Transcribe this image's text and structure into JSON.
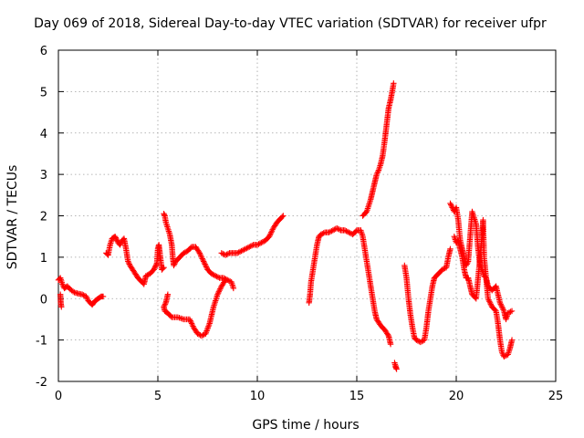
{
  "chart_data": {
    "type": "scatter",
    "title": "Day 069 of 2018, Sidereal Day-to-day VTEC variation (SDTVAR) for receiver ufpr",
    "xlabel": "GPS time / hours",
    "ylabel": "SDTVAR / TECUs",
    "xlim": [
      0,
      25
    ],
    "ylim": [
      -2,
      6
    ],
    "xticks": [
      0,
      5,
      10,
      15,
      20,
      25
    ],
    "yticks": [
      -2,
      -1,
      0,
      1,
      2,
      3,
      4,
      5,
      6
    ],
    "xtick_labels": [
      "0",
      "5",
      "10",
      "15",
      "20",
      "25"
    ],
    "ytick_labels": [
      "-2",
      "-1",
      "0",
      "1",
      "2",
      "3",
      "4",
      "5",
      "6"
    ],
    "grid": true,
    "marker": "plus",
    "series": [
      {
        "name": "SDTVAR",
        "color": "#ff0000",
        "segments": [
          [
            [
              0.0,
              0.45
            ],
            [
              0.1,
              0.5
            ],
            [
              0.2,
              0.35
            ],
            [
              0.3,
              0.25
            ],
            [
              0.45,
              0.3
            ],
            [
              0.6,
              0.22
            ],
            [
              0.8,
              0.15
            ],
            [
              1.0,
              0.12
            ],
            [
              1.2,
              0.1
            ],
            [
              1.4,
              0.05
            ],
            [
              1.5,
              -0.05
            ],
            [
              1.6,
              -0.1
            ],
            [
              1.7,
              -0.15
            ],
            [
              1.85,
              -0.05
            ],
            [
              2.0,
              0.0
            ],
            [
              2.15,
              0.05
            ],
            [
              2.25,
              0.05
            ]
          ],
          [
            [
              0.1,
              0.1
            ],
            [
              0.12,
              -0.1
            ],
            [
              0.15,
              -0.2
            ]
          ],
          [
            [
              2.4,
              1.1
            ],
            [
              2.5,
              1.05
            ],
            [
              2.6,
              1.3
            ],
            [
              2.7,
              1.45
            ],
            [
              2.85,
              1.5
            ],
            [
              3.0,
              1.35
            ],
            [
              3.1,
              1.3
            ],
            [
              3.2,
              1.4
            ],
            [
              3.3,
              1.45
            ],
            [
              3.4,
              1.2
            ],
            [
              3.5,
              0.9
            ],
            [
              3.6,
              0.8
            ],
            [
              3.8,
              0.65
            ],
            [
              4.0,
              0.5
            ],
            [
              4.2,
              0.4
            ],
            [
              4.3,
              0.35
            ],
            [
              4.4,
              0.55
            ],
            [
              4.6,
              0.6
            ],
            [
              4.8,
              0.7
            ],
            [
              4.95,
              0.85
            ],
            [
              5.0,
              1.2
            ],
            [
              5.05,
              1.3
            ],
            [
              5.1,
              1.1
            ],
            [
              5.2,
              0.7
            ],
            [
              5.3,
              0.75
            ]
          ],
          [
            [
              5.3,
              2.05
            ],
            [
              5.35,
              2.0
            ],
            [
              5.4,
              1.85
            ],
            [
              5.5,
              1.7
            ],
            [
              5.6,
              1.55
            ],
            [
              5.7,
              1.3
            ],
            [
              5.75,
              1.0
            ],
            [
              5.8,
              0.8
            ],
            [
              5.9,
              0.9
            ],
            [
              6.1,
              1.0
            ],
            [
              6.3,
              1.1
            ],
            [
              6.5,
              1.15
            ],
            [
              6.7,
              1.25
            ],
            [
              6.9,
              1.25
            ],
            [
              7.1,
              1.1
            ],
            [
              7.3,
              0.9
            ],
            [
              7.5,
              0.7
            ],
            [
              7.7,
              0.6
            ],
            [
              7.9,
              0.55
            ],
            [
              8.1,
              0.5
            ],
            [
              8.3,
              0.5
            ],
            [
              8.5,
              0.45
            ],
            [
              8.7,
              0.4
            ],
            [
              8.8,
              0.25
            ]
          ],
          [
            [
              5.5,
              0.1
            ],
            [
              5.4,
              -0.1
            ],
            [
              5.3,
              -0.2
            ],
            [
              5.35,
              -0.3
            ],
            [
              5.5,
              -0.35
            ],
            [
              5.7,
              -0.45
            ],
            [
              6.0,
              -0.45
            ],
            [
              6.3,
              -0.5
            ],
            [
              6.6,
              -0.5
            ],
            [
              6.8,
              -0.7
            ],
            [
              7.0,
              -0.85
            ],
            [
              7.2,
              -0.9
            ],
            [
              7.4,
              -0.85
            ],
            [
              7.6,
              -0.6
            ],
            [
              7.8,
              -0.2
            ],
            [
              8.0,
              0.1
            ],
            [
              8.2,
              0.3
            ],
            [
              8.4,
              0.45
            ]
          ],
          [
            [
              8.2,
              1.1
            ],
            [
              8.4,
              1.05
            ],
            [
              8.6,
              1.1
            ],
            [
              8.8,
              1.1
            ],
            [
              9.0,
              1.1
            ],
            [
              9.2,
              1.15
            ],
            [
              9.4,
              1.2
            ],
            [
              9.6,
              1.25
            ],
            [
              9.8,
              1.3
            ],
            [
              10.0,
              1.3
            ],
            [
              10.2,
              1.35
            ],
            [
              10.4,
              1.4
            ],
            [
              10.6,
              1.5
            ],
            [
              10.8,
              1.7
            ],
            [
              11.0,
              1.85
            ],
            [
              11.2,
              1.95
            ],
            [
              11.3,
              2.0
            ]
          ],
          [
            [
              12.6,
              -0.1
            ],
            [
              12.65,
              0.1
            ],
            [
              12.7,
              0.4
            ],
            [
              12.8,
              0.7
            ],
            [
              12.9,
              1.0
            ],
            [
              13.0,
              1.3
            ],
            [
              13.1,
              1.5
            ],
            [
              13.2,
              1.55
            ],
            [
              13.4,
              1.6
            ],
            [
              13.6,
              1.6
            ],
            [
              13.8,
              1.65
            ],
            [
              14.0,
              1.7
            ],
            [
              14.2,
              1.65
            ],
            [
              14.4,
              1.65
            ],
            [
              14.6,
              1.6
            ],
            [
              14.8,
              1.55
            ],
            [
              15.0,
              1.65
            ],
            [
              15.2,
              1.65
            ],
            [
              15.3,
              1.5
            ],
            [
              15.4,
              1.2
            ],
            [
              15.5,
              0.9
            ],
            [
              15.6,
              0.6
            ],
            [
              15.7,
              0.3
            ],
            [
              15.8,
              0.0
            ],
            [
              15.9,
              -0.3
            ],
            [
              16.0,
              -0.5
            ],
            [
              16.2,
              -0.65
            ],
            [
              16.4,
              -0.75
            ],
            [
              16.6,
              -0.9
            ],
            [
              16.7,
              -1.1
            ]
          ],
          [
            [
              15.3,
              2.0
            ],
            [
              15.5,
              2.1
            ],
            [
              15.7,
              2.4
            ],
            [
              15.8,
              2.6
            ],
            [
              15.9,
              2.8
            ],
            [
              16.0,
              3.0
            ],
            [
              16.1,
              3.1
            ],
            [
              16.2,
              3.25
            ],
            [
              16.3,
              3.45
            ],
            [
              16.4,
              3.8
            ],
            [
              16.5,
              4.2
            ],
            [
              16.6,
              4.6
            ],
            [
              16.7,
              4.8
            ],
            [
              16.8,
              5.05
            ],
            [
              16.85,
              5.2
            ]
          ],
          [
            [
              16.9,
              -1.55
            ],
            [
              17.0,
              -1.7
            ],
            [
              16.95,
              -1.65
            ]
          ],
          [
            [
              17.4,
              0.8
            ],
            [
              17.5,
              0.5
            ],
            [
              17.6,
              0.0
            ],
            [
              17.7,
              -0.4
            ],
            [
              17.8,
              -0.7
            ],
            [
              17.9,
              -0.95
            ],
            [
              18.0,
              -1.0
            ],
            [
              18.2,
              -1.05
            ],
            [
              18.4,
              -1.0
            ],
            [
              18.5,
              -0.7
            ],
            [
              18.6,
              -0.3
            ],
            [
              18.7,
              0.0
            ],
            [
              18.8,
              0.3
            ],
            [
              18.9,
              0.5
            ],
            [
              19.1,
              0.6
            ],
            [
              19.3,
              0.7
            ],
            [
              19.5,
              0.75
            ],
            [
              19.6,
              1.0
            ],
            [
              19.7,
              1.2
            ]
          ],
          [
            [
              19.7,
              2.3
            ],
            [
              19.8,
              2.2
            ],
            [
              19.9,
              2.1
            ],
            [
              20.0,
              2.2
            ],
            [
              20.1,
              1.9
            ],
            [
              20.2,
              1.4
            ],
            [
              20.3,
              1.2
            ],
            [
              20.4,
              1.0
            ],
            [
              20.5,
              0.8
            ],
            [
              20.6,
              0.9
            ],
            [
              20.7,
              1.5
            ],
            [
              20.8,
              2.1
            ],
            [
              21.0,
              1.8
            ],
            [
              21.1,
              1.2
            ],
            [
              21.2,
              0.8
            ],
            [
              21.3,
              0.7
            ],
            [
              21.4,
              0.55
            ],
            [
              21.5,
              0.5
            ],
            [
              21.6,
              0.3
            ],
            [
              21.8,
              0.2
            ],
            [
              22.0,
              0.3
            ],
            [
              22.2,
              -0.1
            ],
            [
              22.4,
              -0.3
            ],
            [
              22.5,
              -0.5
            ],
            [
              22.6,
              -0.35
            ],
            [
              22.8,
              -0.3
            ]
          ],
          [
            [
              19.9,
              1.5
            ],
            [
              20.0,
              1.35
            ],
            [
              20.1,
              1.4
            ],
            [
              20.2,
              1.2
            ],
            [
              20.3,
              1.0
            ],
            [
              20.4,
              0.7
            ],
            [
              20.5,
              0.5
            ],
            [
              20.6,
              0.5
            ],
            [
              20.7,
              0.3
            ],
            [
              20.8,
              0.1
            ],
            [
              21.0,
              0.0
            ],
            [
              21.1,
              0.5
            ],
            [
              21.2,
              1.0
            ],
            [
              21.3,
              1.5
            ],
            [
              21.35,
              1.9
            ],
            [
              21.4,
              1.0
            ],
            [
              21.5,
              0.5
            ],
            [
              21.6,
              0.0
            ],
            [
              21.8,
              -0.2
            ],
            [
              22.0,
              -0.3
            ],
            [
              22.1,
              -0.6
            ],
            [
              22.2,
              -1.0
            ],
            [
              22.3,
              -1.3
            ],
            [
              22.4,
              -1.4
            ],
            [
              22.6,
              -1.35
            ],
            [
              22.7,
              -1.2
            ],
            [
              22.8,
              -1.0
            ]
          ]
        ]
      }
    ]
  }
}
